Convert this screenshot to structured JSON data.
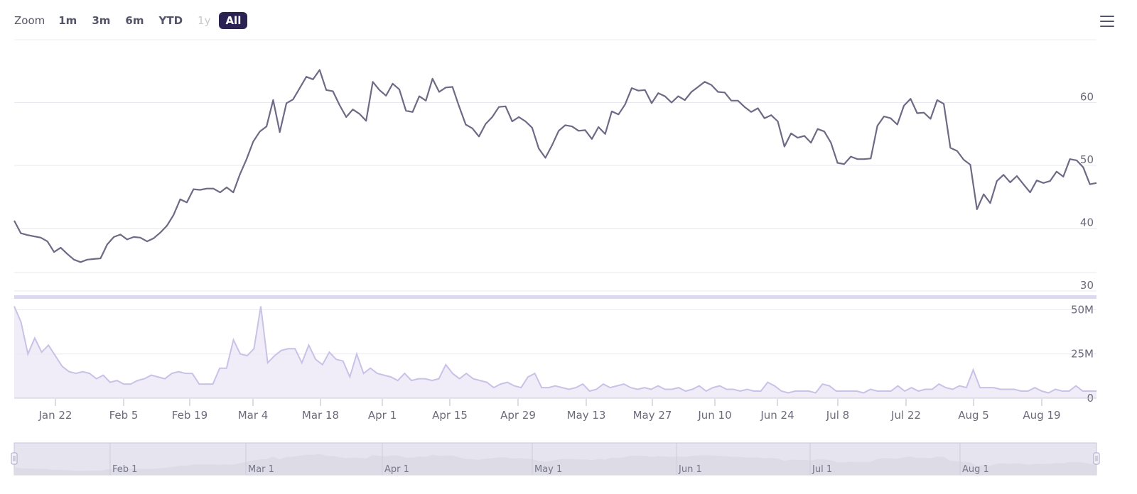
{
  "toolbar": {
    "zoom_label": "Zoom",
    "buttons": [
      {
        "label": "1m",
        "state": "normal"
      },
      {
        "label": "3m",
        "state": "normal"
      },
      {
        "label": "6m",
        "state": "normal"
      },
      {
        "label": "YTD",
        "state": "normal"
      },
      {
        "label": "1y",
        "state": "disabled"
      },
      {
        "label": "All",
        "state": "selected"
      }
    ],
    "menu_icon": "hamburger-icon"
  },
  "colors": {
    "price_line": "#6d6a86",
    "volume_line": "#c9c2e6",
    "volume_fill": "#ece9f8",
    "axis_text": "#6b6b7b",
    "selected_button": "#2a2250",
    "navigator_fill": "#dddbe6"
  },
  "chart_data": {
    "type": "line",
    "price": {
      "ylim": [
        30,
        70
      ],
      "yticks": [
        "30",
        "40",
        "50",
        "60"
      ],
      "values": [
        41.2,
        39.2,
        38.9,
        38.7,
        38.5,
        37.9,
        36.2,
        36.9,
        35.9,
        35.0,
        34.6,
        35.0,
        35.1,
        35.2,
        37.4,
        38.6,
        39.0,
        38.2,
        38.6,
        38.5,
        37.9,
        38.4,
        39.3,
        40.4,
        42.1,
        44.6,
        44.1,
        46.2,
        46.1,
        46.3,
        46.3,
        45.7,
        46.5,
        45.7,
        48.6,
        51.0,
        53.8,
        55.4,
        56.2,
        60.4,
        55.3,
        59.9,
        60.5,
        62.3,
        64.1,
        63.7,
        65.2,
        62.0,
        61.8,
        59.6,
        57.7,
        58.9,
        58.2,
        57.1,
        63.3,
        62.0,
        61.1,
        63.0,
        62.1,
        58.7,
        58.5,
        61.0,
        60.3,
        63.8,
        61.7,
        62.4,
        62.5,
        59.4,
        56.5,
        55.9,
        54.6,
        56.6,
        57.7,
        59.3,
        59.4,
        57.0,
        57.7,
        57.0,
        56.0,
        52.7,
        51.2,
        53.2,
        55.5,
        56.4,
        56.2,
        55.5,
        55.6,
        54.2,
        56.1,
        55.0,
        58.6,
        58.1,
        59.7,
        62.3,
        61.9,
        62.0,
        59.9,
        61.5,
        61.0,
        60.0,
        61.0,
        60.4,
        61.7,
        62.5,
        63.3,
        62.8,
        61.7,
        61.6,
        60.3,
        60.3,
        59.3,
        58.5,
        59.1,
        57.5,
        58.0,
        57.0,
        53.0,
        55.1,
        54.4,
        54.7,
        53.6,
        55.8,
        55.4,
        53.6,
        50.4,
        50.2,
        51.4,
        51.0,
        51.0,
        51.1,
        56.3,
        57.8,
        57.5,
        56.5,
        59.5,
        60.6,
        58.3,
        58.4,
        57.4,
        60.4,
        59.8,
        52.8,
        52.3,
        50.9,
        50.1,
        43.0,
        45.4,
        44.0,
        47.5,
        48.5,
        47.3,
        48.3,
        47.0,
        45.7,
        47.6,
        47.2,
        47.5,
        49.0,
        48.2,
        51.0,
        50.8,
        49.7,
        47.0,
        47.2
      ]
    },
    "volume": {
      "ylim": [
        0,
        55
      ],
      "yticks": [
        "0",
        "25M",
        "50M"
      ],
      "unit": "M",
      "values": [
        52,
        43,
        25,
        34,
        26,
        30,
        24,
        18,
        15,
        14,
        15,
        14,
        11,
        13,
        9,
        10,
        8,
        8,
        10,
        11,
        13,
        12,
        11,
        14,
        15,
        14,
        14,
        8,
        8,
        8,
        17,
        17,
        33,
        25,
        24,
        28,
        52,
        20,
        24,
        27,
        28,
        28,
        20,
        30,
        22,
        19,
        26,
        22,
        21,
        12,
        25,
        14,
        17,
        14,
        13,
        12,
        10,
        14,
        10,
        11,
        11,
        10,
        11,
        19,
        14,
        11,
        14,
        11,
        10,
        9,
        6,
        8,
        9,
        7,
        6,
        12,
        14,
        6,
        6,
        7,
        6,
        5,
        6,
        8,
        4,
        5,
        8,
        6,
        7,
        8,
        6,
        5,
        6,
        5,
        7,
        5,
        5,
        6,
        4,
        5,
        7,
        4,
        6,
        7,
        5,
        5,
        4,
        5,
        4,
        4,
        9,
        7,
        4,
        3,
        4,
        4,
        4,
        3,
        8,
        7,
        4,
        4,
        4,
        4,
        3,
        5,
        4,
        4,
        4,
        7,
        4,
        6,
        4,
        5,
        5,
        8,
        6,
        5,
        7,
        6,
        16,
        6,
        6,
        6,
        5,
        5,
        5,
        4,
        4,
        6,
        4,
        3,
        5,
        4,
        4,
        7,
        4,
        4,
        4
      ]
    },
    "x_ticks": [
      "Jan 22",
      "Feb 5",
      "Feb 19",
      "Mar 4",
      "Mar 18",
      "Apr 1",
      "Apr 15",
      "Apr 29",
      "May 13",
      "May 27",
      "Jun 10",
      "Jun 24",
      "Jul 8",
      "Jul 22",
      "Aug 5",
      "Aug 19"
    ],
    "navigator_ticks": [
      "Feb 1",
      "Mar 1",
      "Apr 1",
      "May 1",
      "Jun 1",
      "Jul 1",
      "Aug 1"
    ]
  }
}
